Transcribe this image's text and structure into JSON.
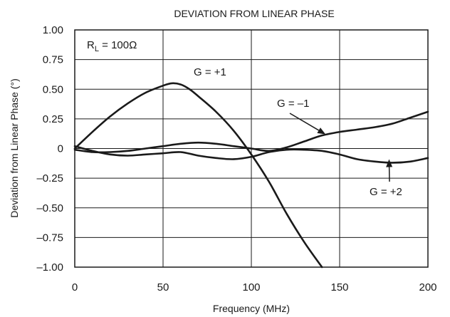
{
  "chart_data": {
    "type": "line",
    "title": "DEVIATION FROM LINEAR PHASE",
    "xlabel": "Frequency (MHz)",
    "ylabel": "Deviation from Linear Phase (°)",
    "xlim": [
      0,
      200
    ],
    "ylim": [
      -1.0,
      1.0
    ],
    "x_ticks": [
      0,
      50,
      100,
      150,
      200
    ],
    "x_tick_labels": [
      "0",
      "50",
      "100",
      "150",
      "200"
    ],
    "y_ticks": [
      1.0,
      0.75,
      0.5,
      0.25,
      0,
      -0.25,
      -0.5,
      -0.75,
      -1.0
    ],
    "y_tick_labels": [
      "1.00",
      "0.75",
      "0.50",
      "0.25",
      "0",
      "–0.25",
      "–0.50",
      "–0.75",
      "–1.00"
    ],
    "grid": true,
    "condition_label": {
      "main": "R",
      "sub": "L",
      "rest": " = 100Ω"
    },
    "series": [
      {
        "name": "G = +1",
        "x": [
          0,
          10,
          20,
          30,
          40,
          50,
          55,
          60,
          65,
          70,
          80,
          90,
          100,
          110,
          120,
          130,
          140
        ],
        "y": [
          0,
          0.14,
          0.27,
          0.38,
          0.47,
          0.53,
          0.55,
          0.54,
          0.5,
          0.44,
          0.31,
          0.15,
          -0.05,
          -0.28,
          -0.55,
          -0.79,
          -1.0
        ]
      },
      {
        "name": "G = –1",
        "x": [
          0,
          10,
          20,
          30,
          40,
          50,
          60,
          70,
          80,
          90,
          100,
          110,
          120,
          130,
          140,
          150,
          160,
          170,
          180,
          190,
          200
        ],
        "y": [
          -0.01,
          -0.03,
          -0.03,
          -0.02,
          0.0,
          0.02,
          0.04,
          0.05,
          0.04,
          0.02,
          0.0,
          -0.02,
          0.01,
          0.06,
          0.11,
          0.14,
          0.16,
          0.18,
          0.21,
          0.26,
          0.31
        ]
      },
      {
        "name": "G = +2",
        "x": [
          0,
          10,
          20,
          30,
          40,
          50,
          60,
          70,
          80,
          90,
          100,
          110,
          120,
          130,
          140,
          150,
          160,
          170,
          180,
          190,
          200
        ],
        "y": [
          0.02,
          -0.02,
          -0.05,
          -0.06,
          -0.05,
          -0.04,
          -0.03,
          -0.06,
          -0.08,
          -0.09,
          -0.07,
          -0.03,
          -0.01,
          -0.01,
          -0.02,
          -0.05,
          -0.09,
          -0.11,
          -0.12,
          -0.11,
          -0.08
        ]
      }
    ],
    "annotations": [
      {
        "text": "G = +1",
        "series": "G = +1"
      },
      {
        "text": "G = –1",
        "series": "G = –1",
        "arrow_to": [
          142,
          0.12
        ]
      },
      {
        "text": "G = +2",
        "series": "G = +2",
        "arrow_to": [
          178,
          -0.09
        ]
      }
    ]
  }
}
